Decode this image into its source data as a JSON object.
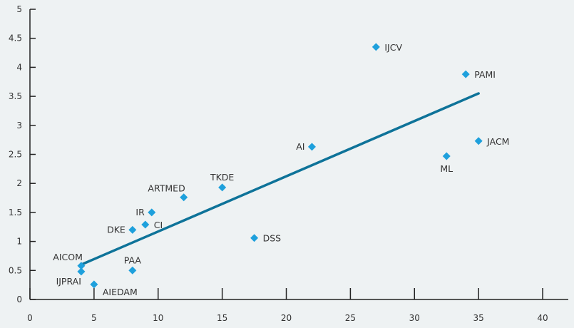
{
  "chart_data": {
    "type": "scatter",
    "title": "",
    "xlabel": "",
    "ylabel": "",
    "xlim": [
      0,
      42
    ],
    "ylim": [
      0,
      5
    ],
    "xticks": [
      0,
      5,
      10,
      15,
      20,
      25,
      30,
      35,
      40
    ],
    "yticks": [
      0,
      0.5,
      1,
      1.5,
      2,
      2.5,
      3,
      3.5,
      4,
      4.5,
      5
    ],
    "xtick_labels": [
      "0",
      "5",
      "10",
      "15",
      "20",
      "25",
      "30",
      "35",
      "40"
    ],
    "ytick_labels": [
      "0",
      "0.5",
      "1",
      "1.5",
      "2",
      "2.5",
      "3",
      "3.5",
      "4",
      "4.5",
      "5"
    ],
    "grid": false,
    "legend": "none",
    "marker": "diamond",
    "colors": {
      "points": "#1ea0dc",
      "trendline": "#0e7399",
      "axis": "#222222",
      "background": "#eef2f3"
    },
    "points": [
      {
        "label": "IJCV",
        "x": 27,
        "y": 4.35,
        "label_pos": "right"
      },
      {
        "label": "PAMI",
        "x": 34,
        "y": 3.88,
        "label_pos": "right"
      },
      {
        "label": "JACM",
        "x": 35,
        "y": 2.73,
        "label_pos": "right"
      },
      {
        "label": "AI",
        "x": 22,
        "y": 2.63,
        "label_pos": "left"
      },
      {
        "label": "ML",
        "x": 32.5,
        "y": 2.47,
        "label_pos": "below"
      },
      {
        "label": "TKDE",
        "x": 15,
        "y": 1.93,
        "label_pos": "above"
      },
      {
        "label": "ARTMED",
        "x": 12,
        "y": 1.76,
        "label_pos": "above-left"
      },
      {
        "label": "IR",
        "x": 9.5,
        "y": 1.5,
        "label_pos": "left"
      },
      {
        "label": "CI",
        "x": 9,
        "y": 1.29,
        "label_pos": "right"
      },
      {
        "label": "DKE",
        "x": 8,
        "y": 1.2,
        "label_pos": "left"
      },
      {
        "label": "DSS",
        "x": 17.5,
        "y": 1.06,
        "label_pos": "right"
      },
      {
        "label": "AICOM",
        "x": 4,
        "y": 0.58,
        "label_pos": "above-left"
      },
      {
        "label": "PAA",
        "x": 8,
        "y": 0.5,
        "label_pos": "above"
      },
      {
        "label": "IJPRAI",
        "x": 4,
        "y": 0.48,
        "label_pos": "below-left"
      },
      {
        "label": "AIEDAM",
        "x": 5,
        "y": 0.26,
        "label_pos": "below-right"
      }
    ],
    "trendline": {
      "x": [
        4,
        35
      ],
      "y": [
        0.6,
        3.55
      ]
    }
  }
}
